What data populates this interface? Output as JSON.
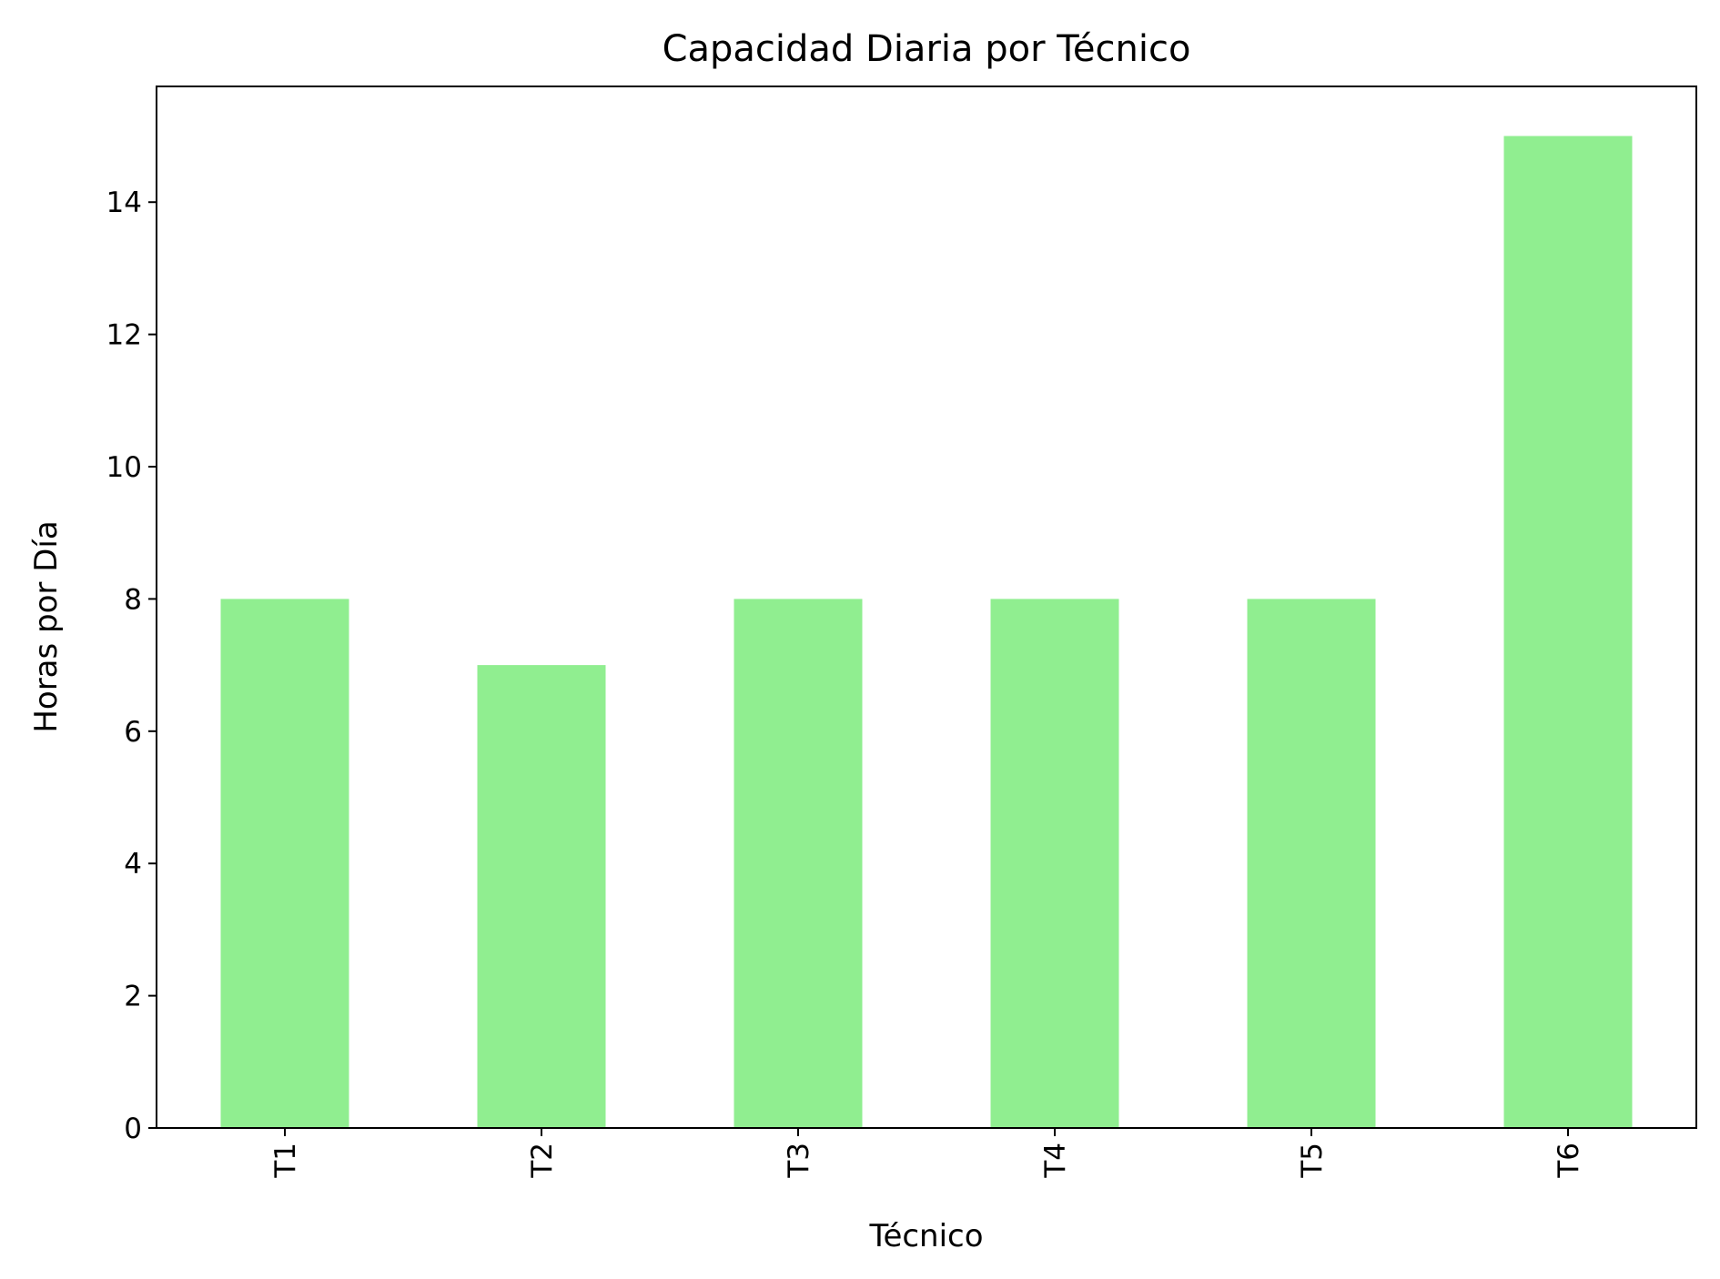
{
  "chart_data": {
    "type": "bar",
    "title": "Capacidad Diaria por Técnico",
    "xlabel": "Técnico",
    "ylabel": "Horas por Día",
    "categories": [
      "T1",
      "T2",
      "T3",
      "T4",
      "T5",
      "T6"
    ],
    "values": [
      8,
      7,
      8,
      8,
      8,
      15
    ],
    "ylim": [
      0,
      15.75
    ],
    "yticks": [
      0,
      2,
      4,
      6,
      8,
      10,
      12,
      14
    ],
    "grid": false,
    "legend": "none",
    "x_tick_rotation": "vertical",
    "bar_color": "#90ee90"
  }
}
